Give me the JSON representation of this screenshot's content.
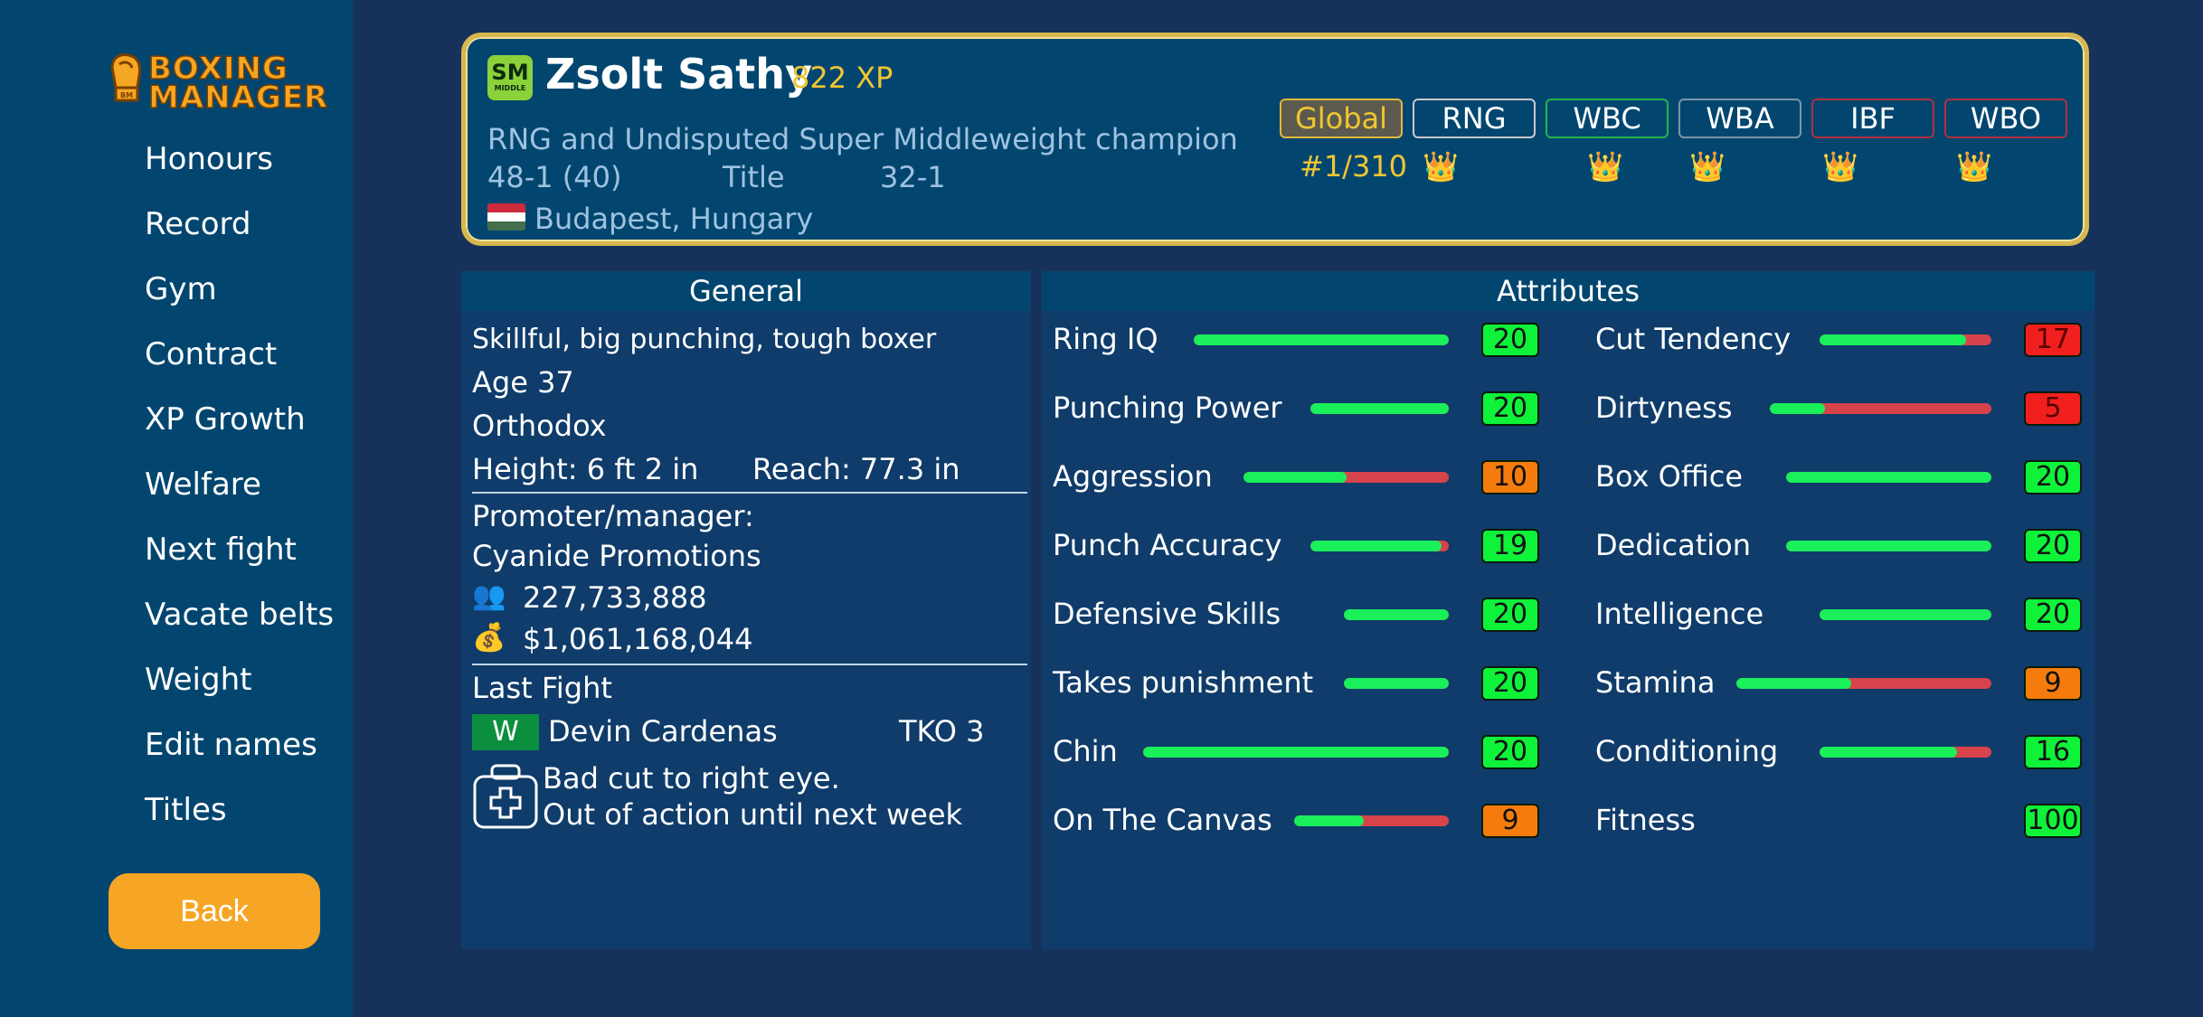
{
  "logo": {
    "line1": "BOXING",
    "line2": "MANAGER",
    "emblem": "boxing-glove-icon"
  },
  "sidebar": {
    "items": [
      "Honours",
      "Record",
      "Gym",
      "Contract",
      "XP Growth",
      "Welfare",
      "Next fight",
      "Vacate belts",
      "Weight",
      "Edit names",
      "Titles"
    ],
    "back_label": "Back"
  },
  "boxer": {
    "division_badge": "SM",
    "division_badge_sub": "MIDDLE",
    "name": "Zsolt Sathy",
    "xp": "822 XP",
    "title_line": "RNG and Undisputed Super Middleweight champion",
    "record": "48-1 (40)",
    "title_label": "Title",
    "title_record": "32-1",
    "location": "Budapest, Hungary",
    "flag_colors": [
      "#cd2a3e",
      "#ffffff",
      "#436f4d"
    ]
  },
  "belts": {
    "tabs": [
      {
        "label": "Global",
        "color": "#e2b93a",
        "fill": "#5c5a4e",
        "text": "#f1c532"
      },
      {
        "label": "RNG",
        "color": "#c9c9c9",
        "fill": "transparent",
        "text": "#ffffff"
      },
      {
        "label": "WBC",
        "color": "#27b34a",
        "fill": "transparent",
        "text": "#ffffff"
      },
      {
        "label": "WBA",
        "color": "#7d94aa",
        "fill": "transparent",
        "text": "#ffffff"
      },
      {
        "label": "IBF",
        "color": "#b2303e",
        "fill": "transparent",
        "text": "#ffffff"
      },
      {
        "label": "WBO",
        "color": "#b2303e",
        "fill": "transparent",
        "text": "#ffffff"
      }
    ],
    "global_rank": "#1/310",
    "crown_icon": "👑",
    "crowns_under": [
      "RNG",
      "WBC",
      "WBA",
      "IBF",
      "WBO"
    ]
  },
  "general": {
    "heading": "General",
    "style": "Skillful, big punching, tough boxer",
    "age": "Age 37",
    "stance": "Orthodox",
    "height": "Height: 6 ft 2 in",
    "reach": "Reach: 77.3 in",
    "promoter_label": "Promoter/manager:",
    "promoter": "Cyanide Promotions",
    "fans_icon": "👥",
    "fans": "227,733,888",
    "money_icon": "💰",
    "money": "$1,061,168,044",
    "last_fight_label": "Last Fight",
    "last_fight_result": "W",
    "last_fight_opponent": "Devin Cardenas",
    "last_fight_method": "TKO 3",
    "injury_icon": "medical-kit-icon",
    "injury_line1": "Bad cut to right eye.",
    "injury_line2": "Out of action until next week"
  },
  "attributes": {
    "heading": "Attributes",
    "colors": {
      "high": "#0ef23a",
      "mid": "#f57c0c",
      "low": "#f21f1f"
    },
    "left": [
      {
        "name": "Ring IQ",
        "value": "20",
        "fill": 1.0,
        "level": "high"
      },
      {
        "name": "Punching Power",
        "value": "20",
        "fill": 1.0,
        "level": "high"
      },
      {
        "name": "Aggression",
        "value": "10",
        "fill": 0.5,
        "level": "mid"
      },
      {
        "name": "Punch Accuracy",
        "value": "19",
        "fill": 0.95,
        "level": "high"
      },
      {
        "name": "Defensive Skills",
        "value": "20",
        "fill": 1.0,
        "level": "high"
      },
      {
        "name": "Takes punishment",
        "value": "20",
        "fill": 1.0,
        "level": "high"
      },
      {
        "name": "Chin",
        "value": "20",
        "fill": 1.0,
        "level": "high"
      },
      {
        "name": "On The Canvas",
        "value": "9",
        "fill": 0.45,
        "level": "mid"
      }
    ],
    "right": [
      {
        "name": "Cut Tendency",
        "value": "17",
        "fill": 0.85,
        "level": "low",
        "bar": true
      },
      {
        "name": "Dirtyness",
        "value": "5",
        "fill": 0.25,
        "level": "low",
        "bar": true
      },
      {
        "name": "Box Office",
        "value": "20",
        "fill": 1.0,
        "level": "high",
        "bar": true
      },
      {
        "name": "Dedication",
        "value": "20",
        "fill": 1.0,
        "level": "high",
        "bar": true
      },
      {
        "name": "Intelligence",
        "value": "20",
        "fill": 1.0,
        "level": "high",
        "bar": true
      },
      {
        "name": "Stamina",
        "value": "9",
        "fill": 0.45,
        "level": "mid",
        "bar": true
      },
      {
        "name": "Conditioning",
        "value": "16",
        "fill": 0.8,
        "level": "high",
        "bar": true
      },
      {
        "name": "Fitness",
        "value": "100",
        "fill": 1.0,
        "level": "high",
        "bar": false
      }
    ]
  }
}
